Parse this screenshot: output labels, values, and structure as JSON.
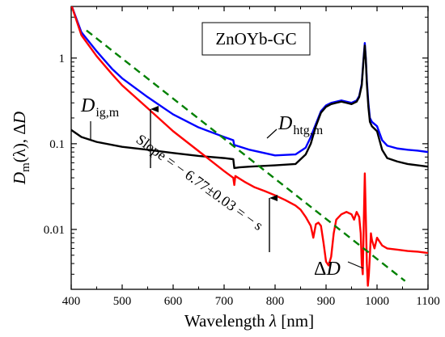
{
  "chart_data": {
    "type": "line",
    "title": "ZnOYb-GC",
    "xlabel": {
      "main": "Wavelength ",
      "symbol": "λ",
      "unit": " [nm]"
    },
    "ylabel": {
      "d": "D",
      "sub": "m",
      "mid": "(λ),  Δ",
      "d2": "D"
    },
    "xlim": [
      400,
      1100
    ],
    "ylim": [
      0.002,
      4
    ],
    "yscale": "log",
    "x_ticks": [
      400,
      500,
      600,
      700,
      800,
      900,
      1000,
      1100
    ],
    "x_tick_labels": [
      "400",
      "500",
      "600",
      "700",
      "800",
      "900",
      "1000",
      "1100"
    ],
    "y_ticks": [
      0.01,
      0.1,
      1
    ],
    "y_tick_labels": [
      "0.01",
      "0.1",
      "1"
    ],
    "grid": false,
    "legend": "none",
    "series": [
      {
        "color": "#0000ff",
        "x": [
          400,
          420,
          450,
          480,
          500,
          550,
          600,
          650,
          700,
          718,
          720,
          722,
          750,
          800,
          840,
          860,
          870,
          880,
          890,
          900,
          910,
          920,
          930,
          940,
          950,
          960,
          965,
          970,
          973,
          976,
          978,
          980,
          983,
          986,
          990,
          1000,
          1010,
          1020,
          1040,
          1060,
          1080,
          1100
        ],
        "y": [
          4.2,
          2.0,
          1.2,
          0.75,
          0.58,
          0.35,
          0.22,
          0.155,
          0.12,
          0.11,
          0.095,
          0.096,
          0.085,
          0.073,
          0.075,
          0.09,
          0.12,
          0.17,
          0.24,
          0.28,
          0.3,
          0.31,
          0.32,
          0.31,
          0.3,
          0.32,
          0.36,
          0.5,
          0.9,
          1.5,
          1.0,
          0.55,
          0.3,
          0.2,
          0.18,
          0.16,
          0.11,
          0.095,
          0.088,
          0.085,
          0.083,
          0.08
        ]
      },
      {
        "color": "#000000",
        "x": [
          400,
          420,
          450,
          500,
          550,
          600,
          650,
          700,
          718,
          720,
          730,
          750,
          800,
          840,
          860,
          870,
          880,
          890,
          900,
          910,
          920,
          930,
          940,
          950,
          960,
          965,
          970,
          973,
          976,
          978,
          980,
          983,
          986,
          990,
          1000,
          1010,
          1020,
          1040,
          1060,
          1080,
          1100
        ],
        "y": [
          0.145,
          0.12,
          0.105,
          0.092,
          0.085,
          0.078,
          0.072,
          0.068,
          0.066,
          0.052,
          0.053,
          0.054,
          0.056,
          0.058,
          0.075,
          0.1,
          0.16,
          0.23,
          0.27,
          0.29,
          0.3,
          0.31,
          0.3,
          0.29,
          0.31,
          0.35,
          0.48,
          0.85,
          1.4,
          0.95,
          0.5,
          0.27,
          0.18,
          0.16,
          0.14,
          0.085,
          0.068,
          0.062,
          0.058,
          0.056,
          0.054
        ]
      },
      {
        "color": "#ff0000",
        "x": [
          400,
          420,
          450,
          480,
          500,
          550,
          600,
          650,
          700,
          718,
          720,
          722,
          740,
          760,
          780,
          800,
          820,
          840,
          850,
          860,
          870,
          875,
          880,
          885,
          890,
          895,
          900,
          905,
          910,
          915,
          920,
          930,
          940,
          950,
          955,
          960,
          965,
          968,
          970,
          972,
          974,
          976,
          978,
          980,
          982,
          984,
          986,
          988,
          990,
          995,
          1000,
          1010,
          1020,
          1040,
          1060,
          1080,
          1100
        ],
        "y": [
          4.2,
          1.85,
          1.05,
          0.65,
          0.48,
          0.26,
          0.14,
          0.082,
          0.048,
          0.04,
          0.033,
          0.042,
          0.036,
          0.031,
          0.028,
          0.025,
          0.022,
          0.019,
          0.017,
          0.014,
          0.011,
          0.008,
          0.0115,
          0.012,
          0.011,
          0.007,
          0.0042,
          0.0038,
          0.0048,
          0.009,
          0.013,
          0.015,
          0.016,
          0.015,
          0.013,
          0.016,
          0.014,
          0.009,
          0.004,
          0.003,
          0.012,
          0.045,
          0.014,
          0.004,
          0.0022,
          0.003,
          0.005,
          0.009,
          0.0075,
          0.006,
          0.008,
          0.0065,
          0.006,
          0.0058,
          0.0056,
          0.0055,
          0.0053
        ]
      }
    ],
    "fit_line": {
      "color": "#008000",
      "dash": "dashed",
      "x": [
        430,
        1055
      ],
      "y": [
        2.1,
        0.0025
      ]
    },
    "annotations": {
      "box_label": "ZnOYb-GC",
      "d_ig": {
        "d": "D",
        "sub": "ig,m"
      },
      "d_htg": {
        "d": "D",
        "sub": "htg,m"
      },
      "delta_d": {
        "delta": "Δ",
        "d": "D"
      },
      "slope": "Slope = − 6.77±0.03 = − s"
    }
  }
}
